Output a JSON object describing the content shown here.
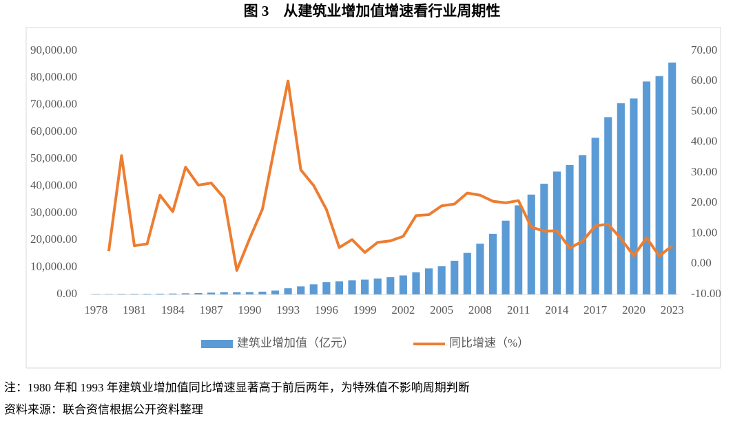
{
  "chart_data": {
    "type": "bar_line",
    "title": "图 3　从建筑业增加值增速看行业周期性",
    "categories": [
      "1978",
      null,
      null,
      "1981",
      null,
      null,
      "1984",
      null,
      null,
      "1987",
      null,
      null,
      "1990",
      null,
      null,
      "1993",
      null,
      null,
      "1996",
      null,
      null,
      "1999",
      null,
      null,
      "2002",
      null,
      null,
      "2005",
      null,
      null,
      "2008",
      null,
      null,
      "2011",
      null,
      null,
      "2014",
      null,
      null,
      "2017",
      null,
      null,
      "2020",
      null,
      null,
      "2023"
    ],
    "series": [
      {
        "name": "建筑业增加值（亿元）",
        "type": "bar",
        "color": "#5b9bd5",
        "axis": "y",
        "values": [
          139,
          144,
          196,
          208,
          221,
          270,
          317,
          418,
          526,
          666,
          811,
          794,
          860,
          1015,
          1415,
          2266,
          2965,
          3729,
          4540,
          4810,
          5232,
          5470,
          5888,
          6375,
          7005,
          8181,
          9600,
          10400,
          12450,
          15350,
          18750,
          22400,
          27260,
          32930,
          36900,
          40900,
          45400,
          47800,
          51500,
          57900,
          65500,
          70650,
          72400,
          78700,
          80700,
          85700
        ]
      },
      {
        "name": "同比增速（%）",
        "type": "line",
        "color": "#ed7d31",
        "axis": "y2",
        "values": [
          null,
          4.2,
          35.6,
          6.0,
          6.6,
          22.6,
          17.2,
          31.8,
          25.9,
          26.6,
          21.7,
          -2.1,
          8.3,
          18.0,
          39.4,
          60.1,
          30.9,
          25.8,
          17.9,
          5.4,
          8.0,
          3.8,
          7.1,
          7.6,
          9.1,
          15.9,
          16.2,
          19.1,
          19.7,
          23.3,
          22.6,
          20.6,
          20.1,
          20.8,
          12.1,
          10.8,
          10.9,
          5.2,
          7.5,
          12.5,
          13.1,
          8.3,
          2.7,
          8.6,
          2.6,
          6.0
        ]
      }
    ],
    "ylim": [
      0,
      90000
    ],
    "yticks": [
      {
        "value": 0,
        "label": "0.00"
      },
      {
        "value": 10000,
        "label": "10,000.00"
      },
      {
        "value": 20000,
        "label": "20,000.00"
      },
      {
        "value": 30000,
        "label": "30,000.00"
      },
      {
        "value": 40000,
        "label": "40,000.00"
      },
      {
        "value": 50000,
        "label": "50,000.00"
      },
      {
        "value": 60000,
        "label": "60,000.00"
      },
      {
        "value": 70000,
        "label": "70,000.00"
      },
      {
        "value": 80000,
        "label": "80,000.00"
      },
      {
        "value": 90000,
        "label": "90,000.00"
      }
    ],
    "y2lim": [
      -10,
      70
    ],
    "y2ticks": [
      {
        "value": -10,
        "label": "-10.00"
      },
      {
        "value": 0,
        "label": "0.00"
      },
      {
        "value": 10,
        "label": "10.00"
      },
      {
        "value": 20,
        "label": "20.00"
      },
      {
        "value": 30,
        "label": "30.00"
      },
      {
        "value": 40,
        "label": "40.00"
      },
      {
        "value": 50,
        "label": "50.00"
      },
      {
        "value": 60,
        "label": "60.00"
      },
      {
        "value": 70,
        "label": "70.00"
      }
    ],
    "legend": "bottom",
    "notes": [
      "注：1980 年和 1993 年建筑业增加值同比增速显著高于前后两年，为特殊值不影响周期判断",
      "资料来源：联合资信根据公开资料整理"
    ]
  }
}
